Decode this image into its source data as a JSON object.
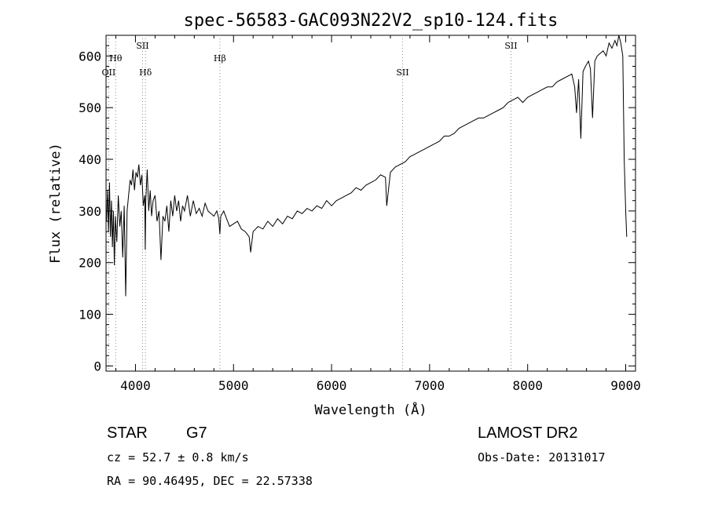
{
  "chart_data": {
    "type": "line",
    "title": "spec-56583-GAC093N22V2_sp10-124.fits",
    "xlabel": "Wavelength (Å)",
    "ylabel": "Flux (relative)",
    "xlim": [
      3700,
      9100
    ],
    "ylim": [
      -10,
      640
    ],
    "x_ticks": [
      4000,
      5000,
      6000,
      7000,
      8000,
      9000
    ],
    "y_ticks": [
      0,
      100,
      200,
      300,
      400,
      500,
      600
    ],
    "grid": false,
    "series_color": "#000000",
    "line_marker_color": "#888888",
    "series": [
      {
        "x": [
          3705,
          3715,
          3725,
          3735,
          3745,
          3755,
          3765,
          3775,
          3785,
          3795,
          3810,
          3825,
          3840,
          3855,
          3870,
          3885,
          3900,
          3915,
          3930,
          3945,
          3960,
          3975,
          3990,
          4005,
          4020,
          4035,
          4050,
          4065,
          4080,
          4095,
          4100,
          4105,
          4120,
          4135,
          4150,
          4165,
          4180,
          4200,
          4220,
          4240,
          4260,
          4280,
          4300,
          4320,
          4340,
          4360,
          4380,
          4400,
          4420,
          4440,
          4460,
          4480,
          4500,
          4530,
          4560,
          4590,
          4620,
          4650,
          4680,
          4710,
          4740,
          4770,
          4800,
          4830,
          4850,
          4861,
          4870,
          4900,
          4930,
          4960,
          5000,
          5040,
          5080,
          5120,
          5160,
          5175,
          5200,
          5250,
          5300,
          5350,
          5400,
          5450,
          5500,
          5550,
          5600,
          5650,
          5700,
          5750,
          5800,
          5850,
          5900,
          5950,
          6000,
          6050,
          6100,
          6150,
          6200,
          6250,
          6300,
          6350,
          6400,
          6450,
          6500,
          6550,
          6563,
          6600,
          6650,
          6700,
          6750,
          6800,
          6850,
          6900,
          6950,
          7000,
          7050,
          7100,
          7150,
          7200,
          7250,
          7300,
          7350,
          7400,
          7450,
          7500,
          7550,
          7600,
          7650,
          7700,
          7750,
          7800,
          7850,
          7900,
          7950,
          8000,
          8050,
          8100,
          8150,
          8200,
          8250,
          8300,
          8350,
          8400,
          8450,
          8480,
          8498,
          8520,
          8542,
          8565,
          8590,
          8620,
          8640,
          8662,
          8685,
          8710,
          8740,
          8770,
          8800,
          8830,
          8860,
          8890,
          8910,
          8930,
          8950,
          8970,
          8985,
          9000,
          9010
        ],
        "y": [
          280,
          340,
          260,
          355,
          250,
          320,
          230,
          300,
          195,
          290,
          240,
          330,
          270,
          300,
          210,
          310,
          135,
          300,
          330,
          360,
          350,
          380,
          340,
          375,
          365,
          390,
          350,
          370,
          310,
          330,
          225,
          320,
          380,
          300,
          340,
          290,
          320,
          330,
          280,
          300,
          205,
          290,
          280,
          310,
          260,
          320,
          290,
          330,
          300,
          320,
          280,
          310,
          300,
          330,
          290,
          320,
          295,
          305,
          290,
          315,
          300,
          295,
          290,
          300,
          285,
          255,
          290,
          300,
          285,
          270,
          275,
          280,
          265,
          260,
          250,
          220,
          260,
          270,
          265,
          280,
          270,
          285,
          275,
          290,
          285,
          300,
          295,
          305,
          300,
          310,
          305,
          320,
          310,
          320,
          325,
          330,
          335,
          345,
          340,
          350,
          355,
          360,
          370,
          365,
          310,
          375,
          385,
          390,
          395,
          405,
          410,
          415,
          420,
          425,
          430,
          435,
          445,
          445,
          450,
          460,
          465,
          470,
          475,
          480,
          480,
          485,
          490,
          495,
          500,
          510,
          515,
          520,
          510,
          520,
          525,
          530,
          535,
          540,
          540,
          550,
          555,
          560,
          565,
          540,
          490,
          555,
          440,
          570,
          580,
          590,
          575,
          480,
          590,
          600,
          605,
          610,
          600,
          625,
          615,
          630,
          620,
          640,
          625,
          600,
          400,
          300,
          250
        ]
      }
    ],
    "line_markers_upper": [
      {
        "label": "Hθ",
        "x": 3798
      },
      {
        "label": "SII",
        "x": 4072
      },
      {
        "label": "SII",
        "x": 7830
      }
    ],
    "line_markers_lower": [
      {
        "label": "OII",
        "x": 3727
      },
      {
        "label": "Hδ",
        "x": 4102
      },
      {
        "label": "Hβ",
        "x": 4861
      },
      {
        "label": "SII",
        "x": 6724
      }
    ]
  },
  "info": {
    "object_class": "STAR",
    "subclass": "G7",
    "survey": "LAMOST DR2",
    "redshift_text": "cz = 52.7 ± 0.8 km/s",
    "obs_date_text": "Obs-Date: 20131017",
    "coords_text": "RA =  90.46495, DEC =  22.57338"
  }
}
